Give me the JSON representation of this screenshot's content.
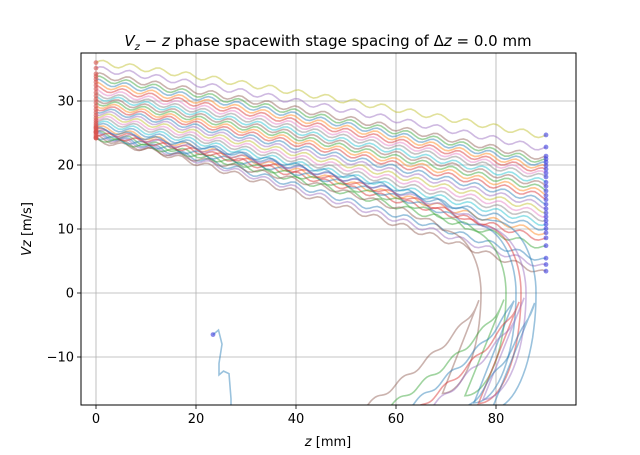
{
  "chart_data": {
    "type": "line",
    "title": {
      "prefix": "",
      "var1": "V",
      "sub1": "z",
      "middle": " − ",
      "var2": "z",
      "after": " phase spacewith stage spacing of Δ",
      "var3": "z",
      "suffix": " = 0.0 mm"
    },
    "xlabel": {
      "var": "z",
      "unit": " [mm]"
    },
    "ylabel": {
      "var": "Vz",
      "unit": " [m/s]"
    },
    "xlim": [
      -3,
      96
    ],
    "ylim": [
      -17.5,
      37.5
    ],
    "xticks": [
      0,
      20,
      40,
      60,
      80
    ],
    "yticks": [
      -10,
      0,
      10,
      20,
      30
    ],
    "grid": true,
    "start_marker_color": "#d9534f",
    "end_marker_color": "#3b3bdc",
    "palette": [
      "#1f77b4",
      "#ff7f0e",
      "#2ca02c",
      "#d62728",
      "#9467bd",
      "#8c564b",
      "#e377c2",
      "#7f7f7f",
      "#bcbd22",
      "#17becf"
    ],
    "series": [
      {
        "kind": "pass",
        "start": 36.0,
        "end": 24.5,
        "color_index": 8
      },
      {
        "kind": "pass",
        "start": 35.0,
        "end": 22.5,
        "color_index": 4
      },
      {
        "kind": "pass",
        "start": 34.0,
        "end": 21.0,
        "color_index": 5
      },
      {
        "kind": "pass",
        "start": 33.5,
        "end": 20.5,
        "color_index": 2
      },
      {
        "kind": "pass",
        "start": 33.0,
        "end": 20.0,
        "color_index": 0
      },
      {
        "kind": "pass",
        "start": 32.5,
        "end": 19.5,
        "color_index": 1
      },
      {
        "kind": "pass",
        "start": 32.0,
        "end": 19.0,
        "color_index": 3
      },
      {
        "kind": "pass",
        "start": 31.5,
        "end": 18.5,
        "color_index": 6
      },
      {
        "kind": "pass",
        "start": 31.0,
        "end": 18.0,
        "color_index": 7
      },
      {
        "kind": "pass",
        "start": 30.6,
        "end": 17.3,
        "color_index": 9
      },
      {
        "kind": "pass",
        "start": 30.2,
        "end": 16.8,
        "color_index": 5
      },
      {
        "kind": "pass",
        "start": 29.8,
        "end": 16.2,
        "color_index": 2
      },
      {
        "kind": "pass",
        "start": 29.4,
        "end": 15.6,
        "color_index": 1
      },
      {
        "kind": "pass",
        "start": 29.0,
        "end": 15.0,
        "color_index": 3
      },
      {
        "kind": "pass",
        "start": 28.6,
        "end": 14.3,
        "color_index": 0
      },
      {
        "kind": "pass",
        "start": 28.2,
        "end": 13.6,
        "color_index": 4
      },
      {
        "kind": "pass",
        "start": 27.8,
        "end": 12.9,
        "color_index": 8
      },
      {
        "kind": "pass",
        "start": 27.4,
        "end": 12.2,
        "color_index": 6
      },
      {
        "kind": "pass",
        "start": 27.0,
        "end": 11.5,
        "color_index": 7
      },
      {
        "kind": "pass",
        "start": 26.6,
        "end": 10.8,
        "color_index": 9
      },
      {
        "kind": "pass",
        "start": 26.2,
        "end": 10.0,
        "color_index": 0
      },
      {
        "kind": "pass",
        "start": 25.8,
        "end": 9.2,
        "color_index": 1
      },
      {
        "kind": "pass",
        "start": 25.4,
        "end": 8.3,
        "color_index": 3
      },
      {
        "kind": "pass",
        "start": 25.0,
        "end": 7.0,
        "color_index": 2
      },
      {
        "kind": "pass",
        "start": 24.8,
        "end": 5.0,
        "color_index": 0
      },
      {
        "kind": "pass",
        "start": 24.6,
        "end": 4.0,
        "color_index": 4
      },
      {
        "kind": "pass",
        "start": 24.3,
        "end": 3.0,
        "color_index": 5
      },
      {
        "kind": "reflect",
        "start": 23.8,
        "turn_z": 77,
        "back_z": 48,
        "color_index": 5
      },
      {
        "kind": "reflect",
        "start": 24.2,
        "turn_z": 82,
        "back_z": 52,
        "color_index": 2
      },
      {
        "kind": "reflect",
        "start": 24.5,
        "turn_z": 84,
        "back_z": 56,
        "color_index": 0
      },
      {
        "kind": "reflect",
        "start": 24.9,
        "turn_z": 85,
        "back_z": 58,
        "color_index": 3
      },
      {
        "kind": "reflect",
        "start": 25.3,
        "turn_z": 86,
        "back_z": 60,
        "color_index": 4
      },
      {
        "kind": "reflect",
        "start": 25.6,
        "turn_z": 88,
        "back_z": 69,
        "color_index": 0
      },
      {
        "kind": "stub",
        "points": [
          [
            23.4,
            -6.5
          ],
          [
            24.5,
            -5.8
          ],
          [
            25.2,
            -8
          ],
          [
            24.6,
            -11
          ],
          [
            24.6,
            -12.8
          ],
          [
            25.5,
            -12.2
          ],
          [
            26.6,
            -12.6
          ],
          [
            27.0,
            -16.5
          ],
          [
            27.0,
            -17.5
          ]
        ],
        "color_index": 0
      }
    ]
  }
}
